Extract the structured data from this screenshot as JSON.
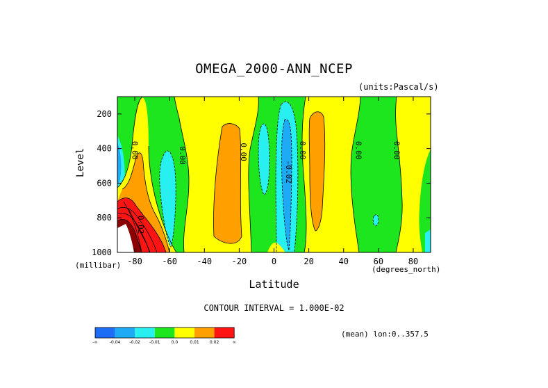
{
  "header": {
    "title": "OMEGA_2000-ANN_NCEP",
    "units": "(units:Pascal/s)"
  },
  "axes": {
    "y_label": "Level",
    "y_units": "(millibar)",
    "x_label": "Latitude",
    "x_units": "(degrees_north)"
  },
  "footer": {
    "contour_interval": "CONTOUR INTERVAL = 1.000E-02",
    "region": "(mean) lon:0..357.5"
  },
  "colors": {
    "lt_neg04": "#1e6ef5",
    "neg04_neg02": "#1eaaf5",
    "neg02_neg01": "#28f0f0",
    "neg01_0": "#1ee61e",
    "0_001": "#ffff00",
    "001_002": "#ffa000",
    "gt_002": "#ff1414"
  },
  "chart_data": {
    "type": "contour",
    "x_range": [
      -90,
      90
    ],
    "y_range": [
      1000,
      100
    ],
    "x_ticks": [
      "-80",
      "-60",
      "-40",
      "-20",
      "0",
      "20",
      "40",
      "60",
      "80"
    ],
    "y_ticks": [
      "200",
      "400",
      "600",
      "800",
      "1000"
    ],
    "contour_labels": [
      "0.00",
      "0.00",
      "0.00",
      "0.00",
      "0.00",
      "0.00",
      "-0.02",
      "0.02"
    ],
    "colorbar_labels": [
      "-∞",
      "-0.04",
      "-0.02",
      "-0.01",
      "0.0",
      "0.01",
      "0.02",
      "∞"
    ],
    "features": [
      {
        "level": "-0.01 to 0",
        "description": "dominant background green (weak ascent)"
      },
      {
        "level": "0 to 0.01",
        "lat_center": -30,
        "description": "subtropical southern subsidence band, 100-1000 mb"
      },
      {
        "level": "0.01 to 0.02",
        "lat_center": -30,
        "description": "core of southern subtropical subsidence, 270-930 mb"
      },
      {
        "level": "-0.04 to -0.02",
        "lat_center": 7,
        "description": "ITCZ ascent core, 170-990 mb"
      },
      {
        "level": "0 to 0.01",
        "lat_center": 22,
        "description": "northern subtropical subsidence band"
      },
      {
        "level": "0.01 to 0.02",
        "lat_center": 22,
        "description": "core of northern subtropical subsidence, 160-810 mb"
      },
      {
        "level": "> 0.02",
        "lat_center": -75,
        "description": "strong Antarctic katabitic descent near surface"
      }
    ]
  }
}
